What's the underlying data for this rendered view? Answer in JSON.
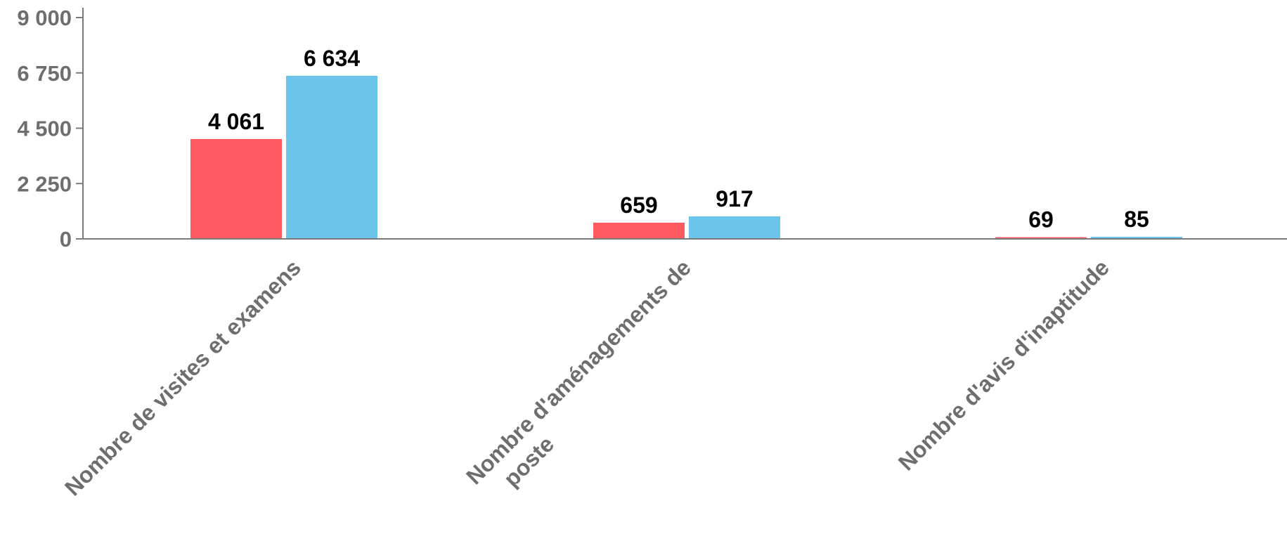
{
  "chart_data": {
    "type": "bar",
    "title": "",
    "xlabel": "",
    "ylabel": "",
    "categories": [
      "Nombre de visites et examens",
      "Nombre d'aménagements de poste",
      "Nombre d'avis d'inaptitude"
    ],
    "category_lines": [
      [
        "Nombre de visites et examens"
      ],
      [
        "Nombre d'aménagements de",
        "poste"
      ],
      [
        "Nombre d'avis d'inaptitude"
      ]
    ],
    "series": [
      {
        "values": [
          4061,
          659,
          69
        ],
        "labels": [
          "4 061",
          "659",
          "69"
        ],
        "color": "#fe5a5f"
      },
      {
        "values": [
          6634,
          917,
          85
        ],
        "labels": [
          "6 634",
          "917",
          "85"
        ],
        "color": "#6cc4eb"
      }
    ],
    "ylim": [
      0,
      9000
    ],
    "yticks": [
      0,
      2250,
      4500,
      6750,
      9000
    ],
    "ytick_labels": [
      "0",
      "2 250",
      "4 500",
      "6 750",
      "9 000"
    ],
    "grid": false,
    "legend": "none",
    "colors": {
      "axis": "#7a7a7a",
      "tick_text": "#6e6e6e",
      "category_text": "#6e6e6e",
      "data_label_text": "#000000"
    }
  }
}
